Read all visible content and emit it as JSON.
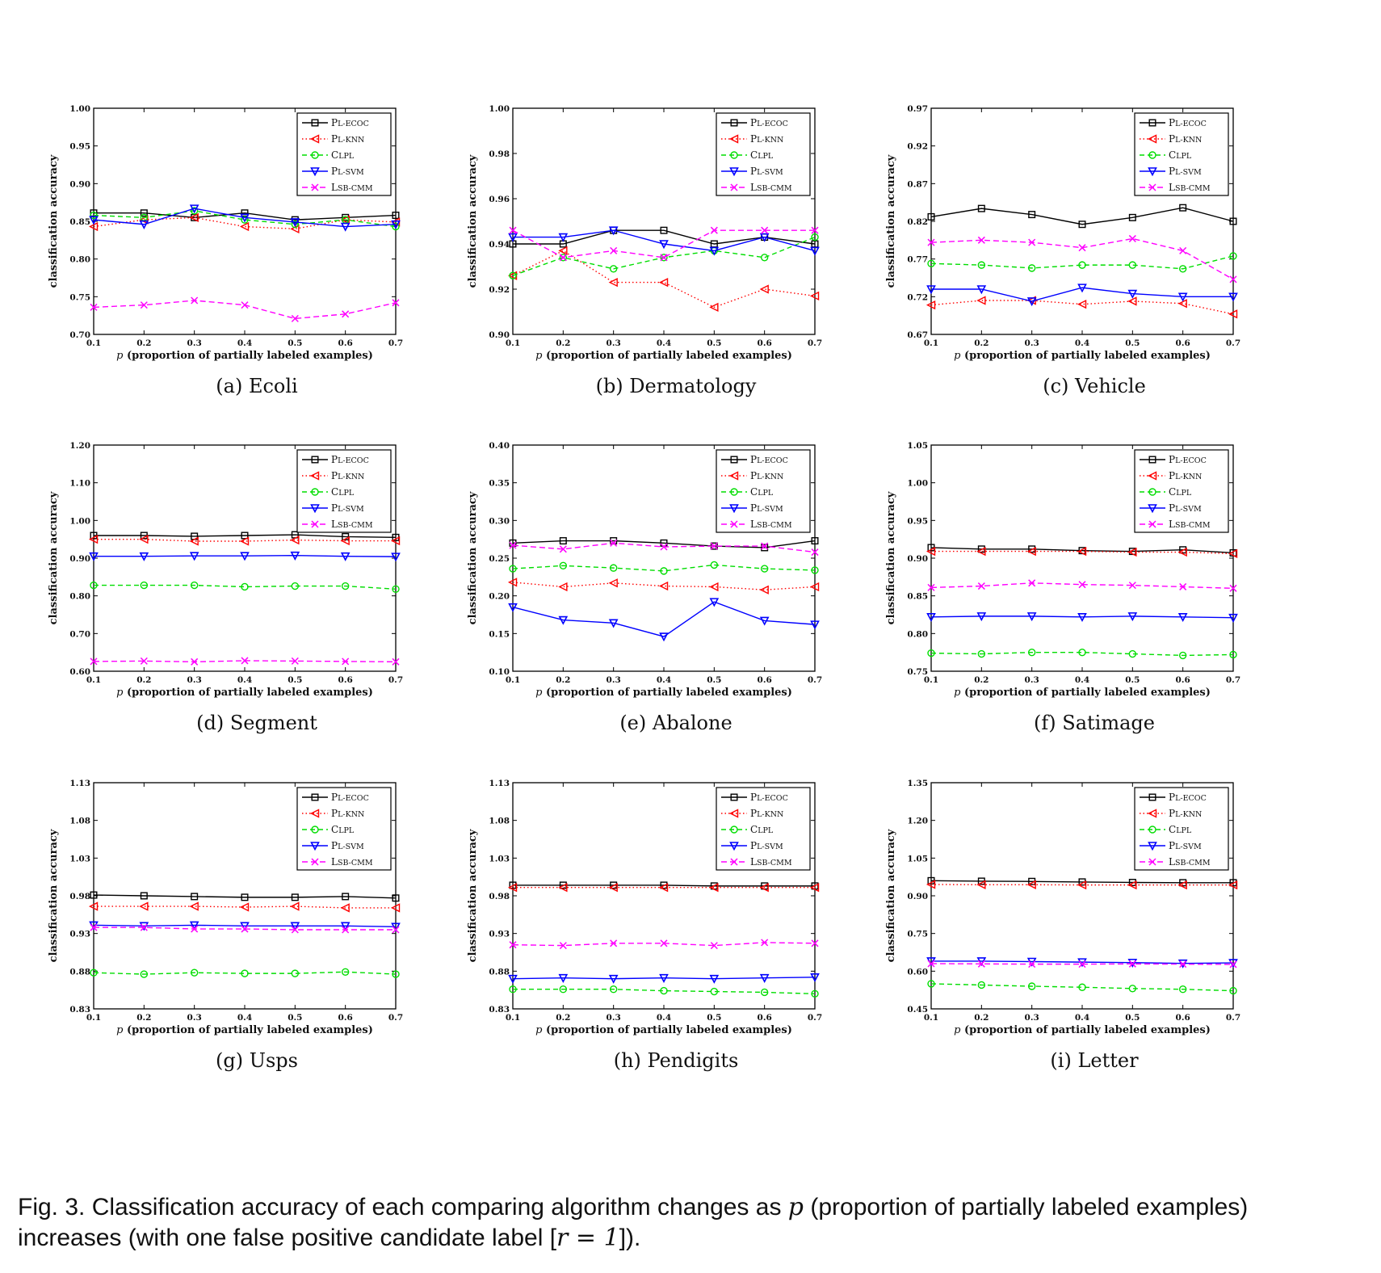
{
  "styles": {
    "PL-ECOC": {
      "color": "#000000",
      "dash": "",
      "marker": "square"
    },
    "PL-KNN": {
      "color": "#ff0000",
      "dash": "1.5,3",
      "marker": "triangle-left"
    },
    "CLPL": {
      "color": "#00dd00",
      "dash": "6,4",
      "marker": "circle"
    },
    "PL-SVM": {
      "color": "#0000ff",
      "dash": "",
      "marker": "triangle-down"
    },
    "LSB-CMM": {
      "color": "#ff00ff",
      "dash": "7,4",
      "marker": "x"
    }
  },
  "chart_data": [
    {
      "type": "line",
      "subcaption": "(a)",
      "name": "Ecoli",
      "xlabel_var": "p",
      "xlabel": "(proportion of partially labeled examples)",
      "ylabel": "classification accuracy",
      "x": [
        0.1,
        0.2,
        0.3,
        0.4,
        0.5,
        0.6,
        0.7
      ],
      "xticks": [
        "0.1",
        "0.2",
        "0.3",
        "0.4",
        "0.5",
        "0.6",
        "0.7"
      ],
      "ylim": [
        0.7,
        1.0
      ],
      "yticks": [
        "0.70",
        "0.75",
        "0.80",
        "0.85",
        "0.90",
        "0.95",
        "1.00"
      ],
      "series": [
        {
          "name": "PL-ECOC",
          "values": [
            0.861,
            0.861,
            0.855,
            0.861,
            0.852,
            0.855,
            0.858
          ]
        },
        {
          "name": "PL-KNN",
          "values": [
            0.843,
            0.852,
            0.855,
            0.843,
            0.84,
            0.852,
            0.849
          ]
        },
        {
          "name": "CLPL",
          "values": [
            0.858,
            0.855,
            0.864,
            0.852,
            0.846,
            0.852,
            0.843
          ]
        },
        {
          "name": "PL-SVM",
          "values": [
            0.852,
            0.846,
            0.867,
            0.855,
            0.849,
            0.843,
            0.846
          ]
        },
        {
          "name": "LSB-CMM",
          "values": [
            0.736,
            0.739,
            0.745,
            0.739,
            0.721,
            0.727,
            0.742
          ]
        }
      ],
      "legend": {
        "position": "top-right",
        "entries": [
          "PL-ECOC",
          "PL-KNN",
          "CLPL",
          "PL-SVM",
          "LSB-CMM"
        ]
      }
    },
    {
      "type": "line",
      "subcaption": "(b)",
      "name": "Dermatology",
      "xlabel_var": "p",
      "xlabel": "(proportion of partially labeled examples)",
      "ylabel": "classification accuracy",
      "x": [
        0.1,
        0.2,
        0.3,
        0.4,
        0.5,
        0.6,
        0.7
      ],
      "xticks": [
        "0.1",
        "0.2",
        "0.3",
        "0.4",
        "0.5",
        "0.6",
        "0.7"
      ],
      "ylim": [
        0.9,
        1.0
      ],
      "yticks": [
        "0.90",
        "0.92",
        "0.94",
        "0.96",
        "0.98",
        "1.00"
      ],
      "series": [
        {
          "name": "PL-ECOC",
          "values": [
            0.94,
            0.94,
            0.946,
            0.946,
            0.94,
            0.943,
            0.94
          ]
        },
        {
          "name": "PL-KNN",
          "values": [
            0.926,
            0.937,
            0.923,
            0.923,
            0.912,
            0.92,
            0.917
          ]
        },
        {
          "name": "CLPL",
          "values": [
            0.926,
            0.934,
            0.929,
            0.934,
            0.937,
            0.934,
            0.943
          ]
        },
        {
          "name": "PL-SVM",
          "values": [
            0.943,
            0.943,
            0.946,
            0.94,
            0.937,
            0.943,
            0.937
          ]
        },
        {
          "name": "LSB-CMM",
          "values": [
            0.946,
            0.934,
            0.937,
            0.934,
            0.946,
            0.946,
            0.946
          ]
        }
      ],
      "legend": {
        "position": "top-right",
        "entries": [
          "PL-ECOC",
          "PL-KNN",
          "CLPL",
          "PL-SVM",
          "LSB-CMM"
        ]
      }
    },
    {
      "type": "line",
      "subcaption": "(c)",
      "name": "Vehicle",
      "xlabel_var": "p",
      "xlabel": "(proportion of partially labeled examples)",
      "ylabel": "classification accuracy",
      "x": [
        0.1,
        0.2,
        0.3,
        0.4,
        0.5,
        0.6,
        0.7
      ],
      "xticks": [
        "0.1",
        "0.2",
        "0.3",
        "0.4",
        "0.5",
        "0.6",
        "0.7"
      ],
      "ylim": [
        0.67,
        0.97
      ],
      "yticks": [
        "0.67",
        "0.72",
        "0.77",
        "0.82",
        "0.87",
        "0.92",
        "0.97"
      ],
      "series": [
        {
          "name": "PL-ECOC",
          "values": [
            0.826,
            0.837,
            0.829,
            0.816,
            0.825,
            0.838,
            0.82
          ]
        },
        {
          "name": "PL-KNN",
          "values": [
            0.709,
            0.715,
            0.715,
            0.71,
            0.714,
            0.711,
            0.697
          ]
        },
        {
          "name": "CLPL",
          "values": [
            0.764,
            0.762,
            0.758,
            0.762,
            0.762,
            0.757,
            0.774
          ]
        },
        {
          "name": "PL-SVM",
          "values": [
            0.73,
            0.73,
            0.714,
            0.732,
            0.724,
            0.72,
            0.72
          ]
        },
        {
          "name": "LSB-CMM",
          "values": [
            0.792,
            0.795,
            0.792,
            0.785,
            0.797,
            0.781,
            0.743
          ]
        }
      ],
      "legend": {
        "position": "top-right",
        "entries": [
          "PL-ECOC",
          "PL-KNN",
          "CLPL",
          "PL-SVM",
          "LSB-CMM"
        ]
      }
    },
    {
      "type": "line",
      "subcaption": "(d)",
      "name": "Segment",
      "xlabel_var": "p",
      "xlabel": "(proportion of partially labeled examples)",
      "ylabel": "classification accuracy",
      "x": [
        0.1,
        0.2,
        0.3,
        0.4,
        0.5,
        0.6,
        0.7
      ],
      "xticks": [
        "0.1",
        "0.2",
        "0.3",
        "0.4",
        "0.5",
        "0.6",
        "0.7"
      ],
      "ylim": [
        0.6,
        1.2
      ],
      "yticks": [
        "0.60",
        "0.70",
        "0.80",
        "0.90",
        "1.00",
        "1.10",
        "1.20"
      ],
      "series": [
        {
          "name": "PL-ECOC",
          "values": [
            0.96,
            0.96,
            0.958,
            0.96,
            0.962,
            0.957,
            0.955
          ]
        },
        {
          "name": "PL-KNN",
          "values": [
            0.95,
            0.95,
            0.945,
            0.945,
            0.948,
            0.946,
            0.946
          ]
        },
        {
          "name": "CLPL",
          "values": [
            0.828,
            0.828,
            0.828,
            0.824,
            0.826,
            0.826,
            0.818
          ]
        },
        {
          "name": "PL-SVM",
          "values": [
            0.905,
            0.905,
            0.906,
            0.906,
            0.907,
            0.905,
            0.904
          ]
        },
        {
          "name": "LSB-CMM",
          "values": [
            0.626,
            0.627,
            0.625,
            0.628,
            0.627,
            0.626,
            0.625
          ]
        }
      ],
      "legend": {
        "position": "top-right",
        "entries": [
          "PL-ECOC",
          "PL-KNN",
          "CLPL",
          "PL-SVM",
          "LSB-CMM"
        ]
      }
    },
    {
      "type": "line",
      "subcaption": "(e)",
      "name": "Abalone",
      "xlabel_var": "p",
      "xlabel": "(proportion of partially labeled examples)",
      "ylabel": "classification accuracy",
      "x": [
        0.1,
        0.2,
        0.3,
        0.4,
        0.5,
        0.6,
        0.7
      ],
      "xticks": [
        "0.1",
        "0.2",
        "0.3",
        "0.4",
        "0.5",
        "0.6",
        "0.7"
      ],
      "ylim": [
        0.1,
        0.4
      ],
      "yticks": [
        "0.10",
        "0.15",
        "0.20",
        "0.25",
        "0.30",
        "0.35",
        "0.40"
      ],
      "series": [
        {
          "name": "PL-ECOC",
          "values": [
            0.27,
            0.273,
            0.273,
            0.27,
            0.266,
            0.264,
            0.273
          ]
        },
        {
          "name": "PL-KNN",
          "values": [
            0.218,
            0.212,
            0.217,
            0.213,
            0.212,
            0.208,
            0.212
          ]
        },
        {
          "name": "CLPL",
          "values": [
            0.236,
            0.24,
            0.237,
            0.233,
            0.241,
            0.236,
            0.234
          ]
        },
        {
          "name": "PL-SVM",
          "values": [
            0.185,
            0.168,
            0.164,
            0.146,
            0.192,
            0.167,
            0.162
          ]
        },
        {
          "name": "LSB-CMM",
          "values": [
            0.267,
            0.262,
            0.27,
            0.265,
            0.266,
            0.266,
            0.258
          ]
        }
      ],
      "legend": {
        "position": "top-right",
        "entries": [
          "PL-ECOC",
          "PL-KNN",
          "CLPL",
          "PL-SVM",
          "LSB-CMM"
        ]
      }
    },
    {
      "type": "line",
      "subcaption": "(f)",
      "name": "Satimage",
      "xlabel_var": "p",
      "xlabel": "(proportion of partially labeled examples)",
      "ylabel": "classification accuracy",
      "x": [
        0.1,
        0.2,
        0.3,
        0.4,
        0.5,
        0.6,
        0.7
      ],
      "xticks": [
        "0.1",
        "0.2",
        "0.3",
        "0.4",
        "0.5",
        "0.6",
        "0.7"
      ],
      "ylim": [
        0.75,
        1.05
      ],
      "yticks": [
        "0.75",
        "0.80",
        "0.85",
        "0.90",
        "0.95",
        "1.00",
        "1.05"
      ],
      "series": [
        {
          "name": "PL-ECOC",
          "values": [
            0.914,
            0.912,
            0.912,
            0.91,
            0.909,
            0.911,
            0.907
          ]
        },
        {
          "name": "PL-KNN",
          "values": [
            0.909,
            0.909,
            0.909,
            0.909,
            0.908,
            0.908,
            0.906
          ]
        },
        {
          "name": "CLPL",
          "values": [
            0.774,
            0.773,
            0.775,
            0.775,
            0.773,
            0.771,
            0.772
          ]
        },
        {
          "name": "PL-SVM",
          "values": [
            0.822,
            0.823,
            0.823,
            0.822,
            0.823,
            0.822,
            0.821
          ]
        },
        {
          "name": "LSB-CMM",
          "values": [
            0.861,
            0.863,
            0.867,
            0.865,
            0.864,
            0.862,
            0.86
          ]
        }
      ],
      "legend": {
        "position": "top-right",
        "entries": [
          "PL-ECOC",
          "PL-KNN",
          "CLPL",
          "PL-SVM",
          "LSB-CMM"
        ]
      }
    },
    {
      "type": "line",
      "subcaption": "(g)",
      "name": "Usps",
      "xlabel_var": "p",
      "xlabel": "(proportion of partially labeled examples)",
      "ylabel": "classification accuracy",
      "x": [
        0.1,
        0.2,
        0.3,
        0.4,
        0.5,
        0.6,
        0.7
      ],
      "xticks": [
        "0.1",
        "0.2",
        "0.3",
        "0.4",
        "0.5",
        "0.6",
        "0.7"
      ],
      "ylim": [
        0.83,
        1.13
      ],
      "yticks": [
        "0.83",
        "0.88",
        "0.93",
        "0.98",
        "1.03",
        "1.08",
        "1.13"
      ],
      "series": [
        {
          "name": "PL-ECOC",
          "values": [
            0.981,
            0.98,
            0.979,
            0.978,
            0.978,
            0.979,
            0.977
          ]
        },
        {
          "name": "PL-KNN",
          "values": [
            0.966,
            0.966,
            0.966,
            0.965,
            0.966,
            0.964,
            0.964
          ]
        },
        {
          "name": "CLPL",
          "values": [
            0.878,
            0.876,
            0.878,
            0.877,
            0.877,
            0.879,
            0.876
          ]
        },
        {
          "name": "PL-SVM",
          "values": [
            0.941,
            0.94,
            0.941,
            0.94,
            0.94,
            0.94,
            0.939
          ]
        },
        {
          "name": "LSB-CMM",
          "values": [
            0.938,
            0.938,
            0.936,
            0.936,
            0.935,
            0.935,
            0.935
          ]
        }
      ],
      "legend": {
        "position": "top-right",
        "entries": [
          "PL-ECOC",
          "PL-KNN",
          "CLPL",
          "PL-SVM",
          "LSB-CMM"
        ]
      }
    },
    {
      "type": "line",
      "subcaption": "(h)",
      "name": "Pendigits",
      "xlabel_var": "p",
      "xlabel": "(proportion of partially labeled examples)",
      "ylabel": "classification accuracy",
      "x": [
        0.1,
        0.2,
        0.3,
        0.4,
        0.5,
        0.6,
        0.7
      ],
      "xticks": [
        "0.1",
        "0.2",
        "0.3",
        "0.4",
        "0.5",
        "0.6",
        "0.7"
      ],
      "ylim": [
        0.83,
        1.13
      ],
      "yticks": [
        "0.83",
        "0.88",
        "0.93",
        "0.98",
        "1.03",
        "1.08",
        "1.13"
      ],
      "series": [
        {
          "name": "PL-ECOC",
          "values": [
            0.994,
            0.994,
            0.994,
            0.994,
            0.993,
            0.993,
            0.993
          ]
        },
        {
          "name": "PL-KNN",
          "values": [
            0.991,
            0.991,
            0.991,
            0.991,
            0.991,
            0.991,
            0.991
          ]
        },
        {
          "name": "CLPL",
          "values": [
            0.856,
            0.856,
            0.856,
            0.854,
            0.853,
            0.852,
            0.85
          ]
        },
        {
          "name": "PL-SVM",
          "values": [
            0.87,
            0.871,
            0.87,
            0.871,
            0.87,
            0.871,
            0.872
          ]
        },
        {
          "name": "LSB-CMM",
          "values": [
            0.915,
            0.914,
            0.917,
            0.917,
            0.914,
            0.918,
            0.917
          ]
        }
      ],
      "legend": {
        "position": "top-right",
        "entries": [
          "PL-ECOC",
          "PL-KNN",
          "CLPL",
          "PL-SVM",
          "LSB-CMM"
        ]
      }
    },
    {
      "type": "line",
      "subcaption": "(i)",
      "name": "Letter",
      "xlabel_var": "p",
      "xlabel": "(proportion of partially labeled examples)",
      "ylabel": "classification accuracy",
      "x": [
        0.1,
        0.2,
        0.3,
        0.4,
        0.5,
        0.6,
        0.7
      ],
      "xticks": [
        "0.1",
        "0.2",
        "0.3",
        "0.4",
        "0.5",
        "0.6",
        "0.7"
      ],
      "ylim": [
        0.45,
        1.35
      ],
      "yticks": [
        "0.45",
        "0.60",
        "0.75",
        "0.90",
        "1.05",
        "1.20",
        "1.35"
      ],
      "series": [
        {
          "name": "PL-ECOC",
          "values": [
            0.96,
            0.958,
            0.957,
            0.955,
            0.953,
            0.952,
            0.952
          ]
        },
        {
          "name": "PL-KNN",
          "values": [
            0.945,
            0.944,
            0.944,
            0.943,
            0.943,
            0.943,
            0.943
          ]
        },
        {
          "name": "CLPL",
          "values": [
            0.55,
            0.545,
            0.54,
            0.536,
            0.531,
            0.528,
            0.522
          ]
        },
        {
          "name": "PL-SVM",
          "values": [
            0.64,
            0.64,
            0.638,
            0.636,
            0.634,
            0.631,
            0.633
          ]
        },
        {
          "name": "LSB-CMM",
          "values": [
            0.63,
            0.629,
            0.628,
            0.628,
            0.629,
            0.628,
            0.627
          ]
        }
      ],
      "legend": {
        "position": "top-right",
        "entries": [
          "PL-ECOC",
          "PL-KNN",
          "CLPL",
          "PL-SVM",
          "LSB-CMM"
        ]
      }
    }
  ],
  "caption": {
    "line1_prefix": "Fig. 3.  Classification accuracy of each comparing algorithm changes as ",
    "var": "p",
    "line1_suffix": " (proportion of partially labeled examples)",
    "line2_prefix": "increases (with one false positive candidate label [",
    "r_expr": "r = 1",
    "line2_suffix": "])."
  }
}
